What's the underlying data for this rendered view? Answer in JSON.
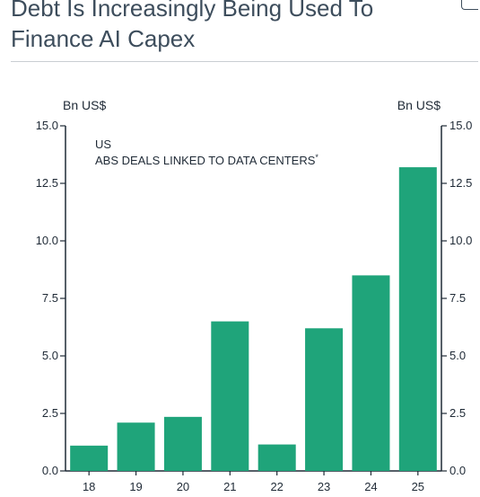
{
  "header": {
    "title_line1": "Debt Is Increasingly Being Used To",
    "title_line2": "Finance AI Capex"
  },
  "colors": {
    "bar": "#1fa47a",
    "axis": "#1f2a36",
    "title": "#3d4d5c"
  },
  "chart_data": {
    "type": "bar",
    "title": "",
    "annotation_line1": "US",
    "annotation_line2": "ABS DEALS LINKED TO DATA CENTERS",
    "annotation_mark": "*",
    "ylabel_left": "Bn US$",
    "ylabel_right": "Bn US$",
    "xlabel": "",
    "categories": [
      "18",
      "19",
      "20",
      "21",
      "22",
      "23",
      "24",
      "25"
    ],
    "values": [
      1.1,
      2.1,
      2.35,
      6.5,
      1.15,
      6.2,
      8.5,
      13.2
    ],
    "ylim": [
      0,
      15
    ],
    "yticks": [
      0,
      2.5,
      5,
      7.5,
      10,
      12.5,
      15
    ],
    "ytick_labels": [
      "0.0",
      "2.5",
      "5.0",
      "7.5",
      "10.0",
      "12.5",
      "15.0"
    ],
    "grid": false,
    "legend": "none"
  }
}
